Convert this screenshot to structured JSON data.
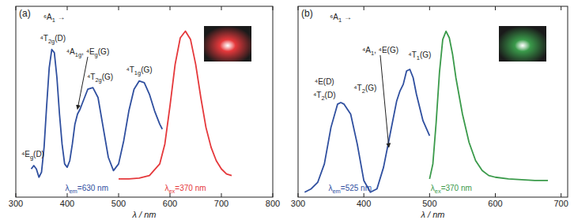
{
  "chart_data": [
    {
      "type": "line",
      "title": "(a)",
      "x_label": "λ / nm",
      "xlim": [
        300,
        800
      ],
      "xticks": [
        300,
        400,
        500,
        600,
        700,
        800
      ],
      "ylim": [
        0,
        1.15
      ],
      "tick_labels": "x",
      "series": [
        {
          "color": "#2f4f9f",
          "x": [
            330,
            335,
            340,
            345,
            350,
            355,
            360,
            365,
            370,
            375,
            380,
            385,
            390,
            395,
            400,
            405,
            410,
            415,
            420,
            425,
            430,
            440,
            450,
            460,
            470,
            480,
            490,
            500,
            510,
            520,
            530,
            540,
            550,
            560,
            570,
            580,
            585
          ],
          "values": [
            0.17,
            0.19,
            0.17,
            0.12,
            0.15,
            0.3,
            0.55,
            0.78,
            0.89,
            0.87,
            0.72,
            0.5,
            0.32,
            0.2,
            0.18,
            0.22,
            0.32,
            0.44,
            0.5,
            0.53,
            0.57,
            0.65,
            0.66,
            0.6,
            0.42,
            0.24,
            0.16,
            0.2,
            0.34,
            0.52,
            0.65,
            0.7,
            0.69,
            0.62,
            0.52,
            0.44,
            0.41
          ]
        },
        {
          "color": "#e5383b",
          "x": [
            500,
            520,
            540,
            560,
            580,
            590,
            600,
            610,
            620,
            630,
            640,
            650,
            660,
            670,
            680,
            690,
            700,
            710,
            720
          ],
          "values": [
            0.11,
            0.11,
            0.115,
            0.13,
            0.2,
            0.32,
            0.55,
            0.8,
            0.96,
            1.0,
            0.95,
            0.8,
            0.6,
            0.42,
            0.3,
            0.22,
            0.17,
            0.14,
            0.13
          ]
        }
      ],
      "annotations": [
        {
          "text": "⁶A1 →",
          "x": 375,
          "y": 1.07
        },
        {
          "text": "⁴Eg(D)",
          "x": 333,
          "y": 0.24
        },
        {
          "text": "⁴T2g(D)",
          "x": 372,
          "y": 0.94
        },
        {
          "text": "⁴A1g, ⁴Eg(G)",
          "x": 440,
          "y": 0.86,
          "xy": [
            420,
            0.53
          ]
        },
        {
          "text": "⁴T2g(G)",
          "x": 464,
          "y": 0.71
        },
        {
          "text": "⁴T1g(G)",
          "x": 540,
          "y": 0.75
        },
        {
          "text": "λem=630 nm",
          "x": 438,
          "y": 0.04,
          "color": "#2f4f9f"
        },
        {
          "text": "λex=370 nm",
          "x": 630,
          "y": 0.04,
          "color": "#e5383b"
        }
      ]
    },
    {
      "type": "line",
      "title": "(b)",
      "x_label": "λ / nm",
      "xlim": [
        300,
        710
      ],
      "xticks": [
        300,
        400,
        500,
        600,
        700
      ],
      "ylim": [
        0,
        1.15
      ],
      "tick_labels": "x",
      "series": [
        {
          "color": "#2f4f9f",
          "x": [
            310,
            320,
            330,
            340,
            350,
            360,
            365,
            370,
            380,
            390,
            400,
            410,
            420,
            430,
            440,
            450,
            455,
            460,
            465,
            470,
            475,
            480,
            490,
            500
          ],
          "values": [
            0.03,
            0.05,
            0.09,
            0.2,
            0.42,
            0.56,
            0.57,
            0.56,
            0.5,
            0.32,
            0.1,
            0.03,
            0.05,
            0.18,
            0.38,
            0.58,
            0.64,
            0.68,
            0.76,
            0.77,
            0.72,
            0.62,
            0.46,
            0.37
          ]
        },
        {
          "color": "#3a9a4a",
          "x": [
            500,
            505,
            510,
            515,
            520,
            525,
            530,
            535,
            540,
            550,
            560,
            570,
            580,
            590,
            600,
            620,
            640,
            660,
            680
          ],
          "values": [
            0.11,
            0.2,
            0.45,
            0.75,
            0.95,
            1.0,
            0.96,
            0.86,
            0.72,
            0.5,
            0.33,
            0.22,
            0.16,
            0.13,
            0.12,
            0.11,
            0.105,
            0.1,
            0.1
          ]
        }
      ],
      "annotations": [
        {
          "text": "⁶A1 →",
          "x": 365,
          "y": 1.07
        },
        {
          "text": "⁴E(D)",
          "x": 340,
          "y": 0.68
        },
        {
          "text": "⁴T2(D)",
          "x": 340,
          "y": 0.6
        },
        {
          "text": "⁴A1, ⁴E(G)",
          "x": 425,
          "y": 0.87,
          "xy": [
            438,
            0.3
          ]
        },
        {
          "text": "⁴T2(G)",
          "x": 402,
          "y": 0.64
        },
        {
          "text": "⁴T1(G)",
          "x": 485,
          "y": 0.84
        },
        {
          "text": "λem=525 nm",
          "x": 379,
          "y": 0.04,
          "color": "#2f4f9f"
        },
        {
          "text": "λex=370 nm",
          "x": 533,
          "y": 0.04,
          "color": "#3a9a4a"
        }
      ]
    }
  ]
}
